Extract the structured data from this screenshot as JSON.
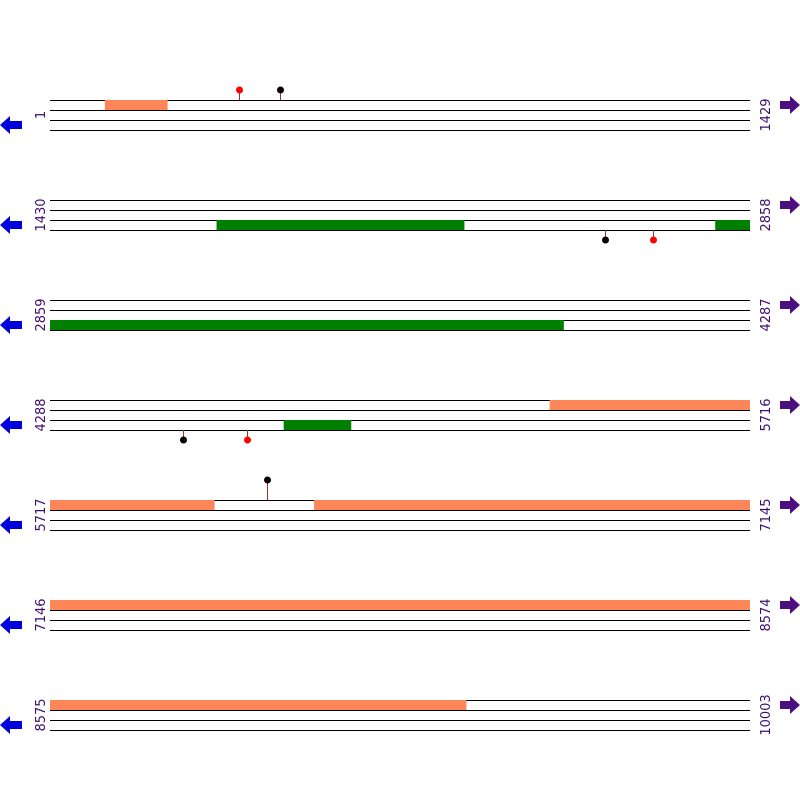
{
  "colors": {
    "track_line": "#000000",
    "orange_block": "#ff8659",
    "green_block": "#008000",
    "marker_red": "#ff0000",
    "marker_black": "#000000",
    "stem": "#a0302a",
    "left_arrow": "#0000dd",
    "right_arrow": "#4b0f80",
    "label": "#3d0d6b"
  },
  "icons": {
    "left": "left-arrow-icon",
    "right": "right-arrow-icon"
  },
  "rows": [
    {
      "start_label": "1",
      "end_label": "1429",
      "start": 1,
      "end": 1429,
      "blocks": [
        {
          "lane": 0,
          "color": "orange",
          "from": 113,
          "to": 240
        }
      ],
      "markers": [
        {
          "pos": 386,
          "color": "red",
          "side": "above",
          "stem": 10
        },
        {
          "pos": 470,
          "color": "black",
          "side": "above",
          "stem": 10
        }
      ]
    },
    {
      "start_label": "1430",
      "end_label": "2858",
      "start": 1430,
      "end": 2858,
      "blocks": [
        {
          "lane": 2,
          "color": "green",
          "from": 1770,
          "to": 2275
        },
        {
          "lane": 2,
          "color": "green",
          "from": 2788,
          "to": 2858
        }
      ],
      "markers": [
        {
          "pos": 2562,
          "color": "black",
          "side": "below",
          "stem": 10
        },
        {
          "pos": 2660,
          "color": "red",
          "side": "below",
          "stem": 10
        }
      ]
    },
    {
      "start_label": "2859",
      "end_label": "4287",
      "start": 2859,
      "end": 4287,
      "blocks": [
        {
          "lane": 2,
          "color": "green",
          "from": 2859,
          "to": 3907
        }
      ],
      "markers": []
    },
    {
      "start_label": "4288",
      "end_label": "5716",
      "start": 4288,
      "end": 5716,
      "blocks": [
        {
          "lane": 0,
          "color": "orange",
          "from": 5308,
          "to": 5716
        },
        {
          "lane": 2,
          "color": "green",
          "from": 4765,
          "to": 4902
        }
      ],
      "markers": [
        {
          "pos": 4559,
          "color": "black",
          "side": "below",
          "stem": 10
        },
        {
          "pos": 4691,
          "color": "red",
          "side": "below",
          "stem": 10
        }
      ]
    },
    {
      "start_label": "5717",
      "end_label": "7145",
      "start": 5717,
      "end": 7145,
      "blocks": [
        {
          "lane": 0,
          "color": "orange",
          "from": 5717,
          "to": 6052
        },
        {
          "lane": 0,
          "color": "orange",
          "from": 6256,
          "to": 7145
        }
      ],
      "markers": [
        {
          "pos": 6159,
          "color": "black",
          "side": "above",
          "stem": 20
        }
      ]
    },
    {
      "start_label": "7146",
      "end_label": "8574",
      "start": 7146,
      "end": 8574,
      "blocks": [
        {
          "lane": 0,
          "color": "orange",
          "from": 7146,
          "to": 8574
        }
      ],
      "markers": []
    },
    {
      "start_label": "8575",
      "end_label": "10003",
      "start": 8575,
      "end": 10003,
      "blocks": [
        {
          "lane": 0,
          "color": "orange",
          "from": 8575,
          "to": 9424
        }
      ],
      "markers": []
    }
  ]
}
